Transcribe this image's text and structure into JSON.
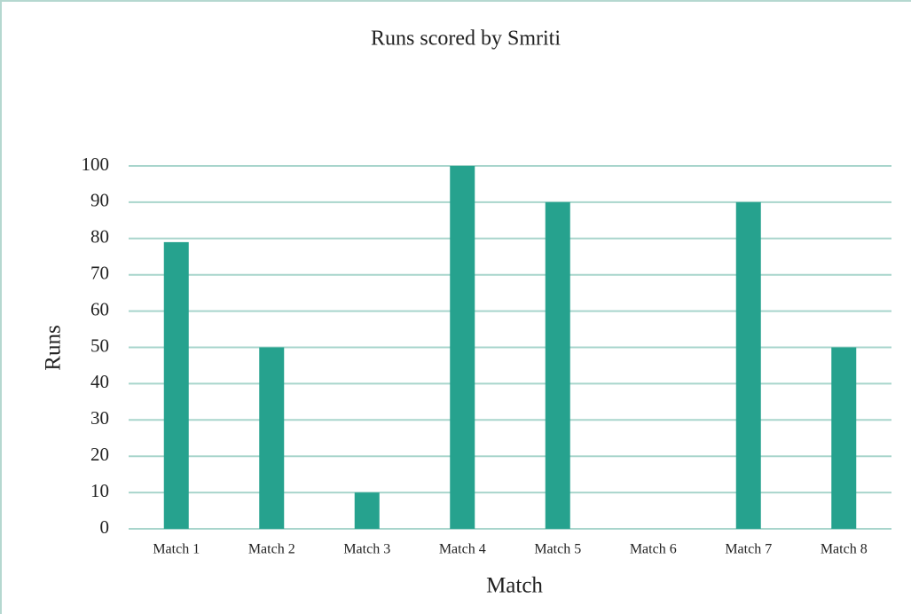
{
  "chart_data": {
    "type": "bar",
    "title": "Runs scored by Smriti",
    "x_label": "Match",
    "y_label": "Runs",
    "categories": [
      "Match 1",
      "Match 2",
      "Match 3",
      "Match 4",
      "Match 5",
      "Match 6",
      "Match 7",
      "Match 8"
    ],
    "values": [
      79,
      50,
      10,
      100,
      90,
      0,
      90,
      50
    ],
    "color": "#26a28e",
    "ylim": [
      0,
      100
    ],
    "yticks": [
      0,
      10,
      20,
      30,
      40,
      50,
      60,
      70,
      80,
      90,
      100
    ],
    "grid": true
  }
}
